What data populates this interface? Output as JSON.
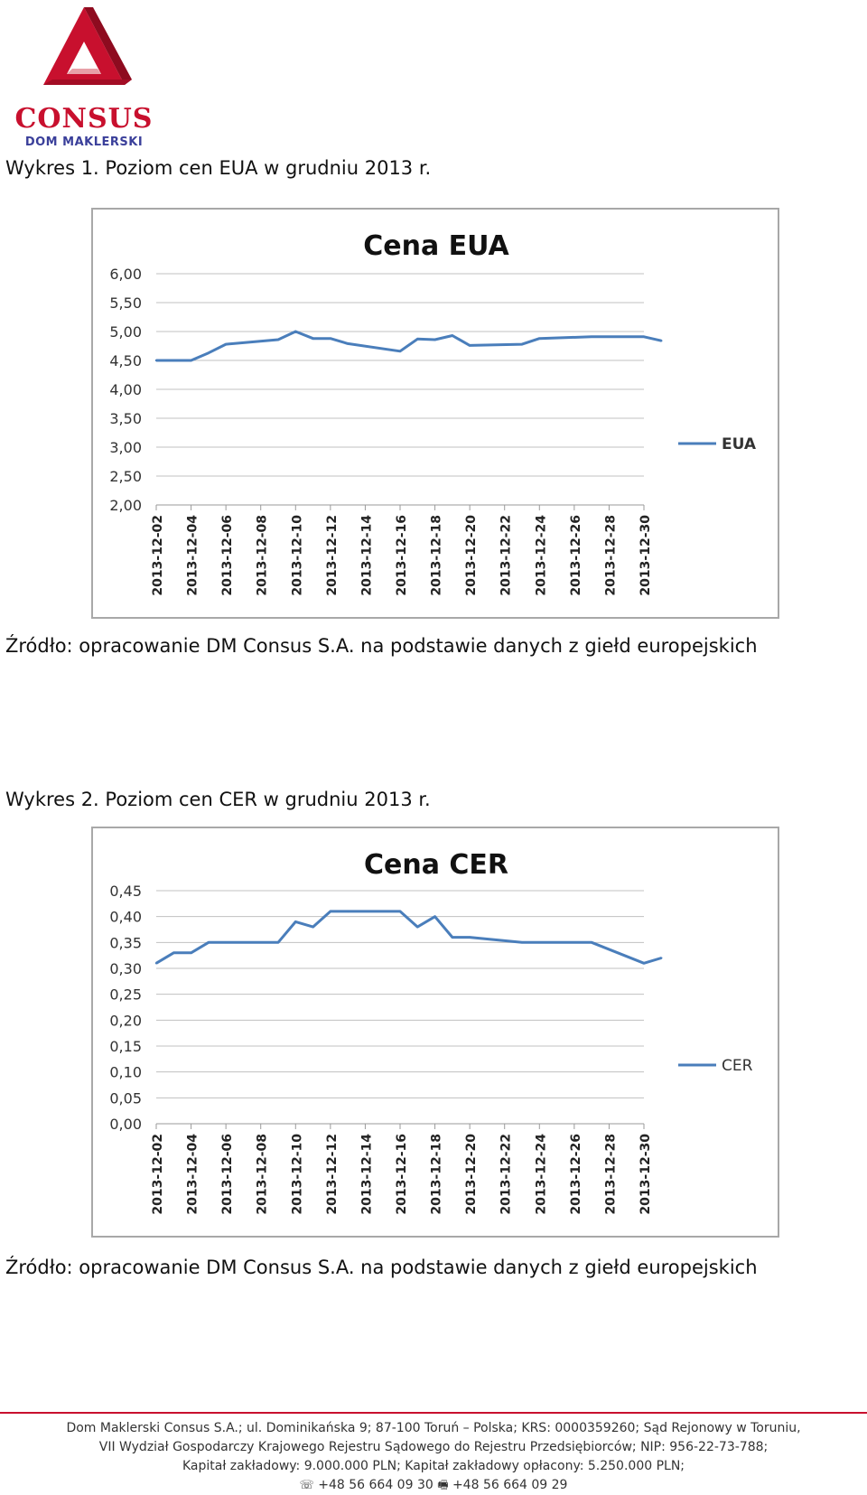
{
  "logo": {
    "name": "CONSUS",
    "subtitle": "DOM MAKLERSKI",
    "colors": {
      "red": "#c8102e",
      "dark_red": "#8e0b1f",
      "blue": "#3a3f9a"
    }
  },
  "figure1": {
    "caption": "Wykres 1. Poziom cen EUA w grudniu 2013 r.",
    "source": "Źródło: opracowanie DM Consus S.A. na podstawie danych z giełd europejskich"
  },
  "figure2": {
    "caption": "Wykres 2. Poziom cen CER w grudniu 2013 r.",
    "source": "Źródło: opracowanie DM Consus S.A. na podstawie danych z giełd europejskich"
  },
  "chart_data": [
    {
      "type": "line",
      "title": "Cena  EUA",
      "xlabel": "",
      "ylabel": "",
      "ylim": [
        2.0,
        6.0
      ],
      "yticks": [
        "2,00",
        "2,50",
        "3,00",
        "3,50",
        "4,00",
        "4,50",
        "5,00",
        "5,50",
        "6,00"
      ],
      "categories": [
        "2013-12-02",
        "2013-12-03",
        "2013-12-04",
        "2013-12-05",
        "2013-12-06",
        "2013-12-09",
        "2013-12-10",
        "2013-12-11",
        "2013-12-12",
        "2013-12-13",
        "2013-12-16",
        "2013-12-17",
        "2013-12-18",
        "2013-12-19",
        "2013-12-20",
        "2013-12-23",
        "2013-12-24",
        "2013-12-27",
        "2013-12-30",
        "2013-12-31"
      ],
      "x": [
        "2013-12-02",
        "2013-12-03",
        "2013-12-04",
        "2013-12-05",
        "2013-12-06",
        "2013-12-09",
        "2013-12-10",
        "2013-12-11",
        "2013-12-12",
        "2013-12-13",
        "2013-12-16",
        "2013-12-17",
        "2013-12-18",
        "2013-12-19",
        "2013-12-20",
        "2013-12-23",
        "2013-12-24",
        "2013-12-27",
        "2013-12-30",
        "2013-12-31"
      ],
      "xtick_labels": [
        "2013-12-02",
        "2013-12-04",
        "2013-12-06",
        "2013-12-08",
        "2013-12-10",
        "2013-12-12",
        "2013-12-14",
        "2013-12-16",
        "2013-12-18",
        "2013-12-20",
        "2013-12-22",
        "2013-12-24",
        "2013-12-26",
        "2013-12-28",
        "2013-12-30"
      ],
      "series": [
        {
          "name": "EUA",
          "color": "#4a7ebb",
          "values": [
            4.5,
            4.5,
            4.5,
            4.63,
            4.78,
            4.86,
            5.0,
            4.88,
            4.88,
            4.79,
            4.66,
            4.87,
            4.86,
            4.93,
            4.76,
            4.78,
            4.88,
            4.91,
            4.91,
            4.84
          ]
        }
      ],
      "grid": true,
      "legend": "right"
    },
    {
      "type": "line",
      "title": "Cena CER",
      "xlabel": "",
      "ylabel": "",
      "ylim": [
        0.0,
        0.45
      ],
      "yticks": [
        "0,00",
        "0,05",
        "0,10",
        "0,15",
        "0,20",
        "0,25",
        "0,30",
        "0,35",
        "0,40",
        "0,45"
      ],
      "categories": [
        "2013-12-02",
        "2013-12-03",
        "2013-12-04",
        "2013-12-05",
        "2013-12-06",
        "2013-12-09",
        "2013-12-10",
        "2013-12-11",
        "2013-12-12",
        "2013-12-13",
        "2013-12-16",
        "2013-12-17",
        "2013-12-18",
        "2013-12-19",
        "2013-12-20",
        "2013-12-23",
        "2013-12-24",
        "2013-12-27",
        "2013-12-30",
        "2013-12-31"
      ],
      "x": [
        "2013-12-02",
        "2013-12-03",
        "2013-12-04",
        "2013-12-05",
        "2013-12-06",
        "2013-12-09",
        "2013-12-10",
        "2013-12-11",
        "2013-12-12",
        "2013-12-13",
        "2013-12-16",
        "2013-12-17",
        "2013-12-18",
        "2013-12-19",
        "2013-12-20",
        "2013-12-23",
        "2013-12-24",
        "2013-12-27",
        "2013-12-30",
        "2013-12-31"
      ],
      "xtick_labels": [
        "2013-12-02",
        "2013-12-04",
        "2013-12-06",
        "2013-12-08",
        "2013-12-10",
        "2013-12-12",
        "2013-12-14",
        "2013-12-16",
        "2013-12-18",
        "2013-12-20",
        "2013-12-22",
        "2013-12-24",
        "2013-12-26",
        "2013-12-28",
        "2013-12-30"
      ],
      "series": [
        {
          "name": "CER",
          "color": "#4a7ebb",
          "values": [
            0.31,
            0.33,
            0.33,
            0.35,
            0.35,
            0.35,
            0.39,
            0.38,
            0.41,
            0.41,
            0.41,
            0.38,
            0.4,
            0.36,
            0.36,
            0.35,
            0.35,
            0.35,
            0.31,
            0.32
          ]
        }
      ],
      "grid": true,
      "legend": "right"
    }
  ],
  "footer": {
    "line1": "Dom Maklerski Consus S.A.; ul. Dominikańska 9; 87-100 Toruń – Polska; KRS: 0000359260; Sąd Rejonowy w Toruniu,",
    "line2": "VII Wydział Gospodarczy Krajowego Rejestru Sądowego do Rejestru Przedsiębiorców; NIP: 956-22-73-788;",
    "line3": "Kapitał zakładowy: 9.000.000 PLN; Kapitał zakładowy opłacony: 5.250.000 PLN;",
    "phone": "+48 56 664 09 30",
    "fax": "+48 56 664 09 29",
    "phone_icon": "phone-icon",
    "fax_icon": "fax-icon",
    "rule_color": "#c8102e"
  }
}
